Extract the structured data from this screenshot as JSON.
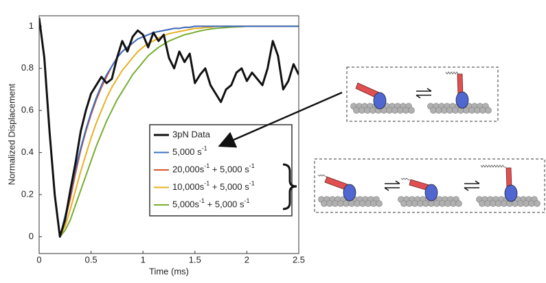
{
  "chart_data": {
    "type": "line",
    "x_label": "Time (ms)",
    "y_label": "Normalized Displacement",
    "xlim": [
      0,
      2.5
    ],
    "ylim": [
      -0.08,
      1.05
    ],
    "xticks": [
      0,
      0.5,
      1,
      1.5,
      2,
      2.5
    ],
    "yticks": [
      0,
      0.2,
      0.4,
      0.6,
      0.8,
      1
    ],
    "x": [
      0,
      0.05,
      0.1,
      0.15,
      0.2,
      0.25,
      0.3,
      0.35,
      0.4,
      0.45,
      0.5,
      0.55,
      0.6,
      0.65,
      0.7,
      0.75,
      0.8,
      0.85,
      0.9,
      0.95,
      1,
      1.05,
      1.1,
      1.15,
      1.2,
      1.25,
      1.3,
      1.35,
      1.4,
      1.45,
      1.5,
      1.55,
      1.6,
      1.65,
      1.7,
      1.75,
      1.8,
      1.85,
      1.9,
      1.95,
      2,
      2.05,
      2.1,
      2.15,
      2.2,
      2.25,
      2.3,
      2.35,
      2.4,
      2.45,
      2.5
    ],
    "series": [
      {
        "name": "3pN Data",
        "color": "#111111",
        "width": 3,
        "values": [
          1.04,
          0.85,
          0.5,
          0.2,
          0.0,
          0.08,
          0.22,
          0.35,
          0.5,
          0.6,
          0.68,
          0.72,
          0.76,
          0.73,
          0.75,
          0.85,
          0.93,
          0.88,
          0.95,
          0.98,
          0.96,
          0.9,
          0.97,
          0.93,
          0.96,
          0.85,
          0.8,
          0.88,
          0.83,
          0.87,
          0.73,
          0.77,
          0.8,
          0.72,
          0.68,
          0.64,
          0.7,
          0.72,
          0.78,
          0.8,
          0.74,
          0.78,
          0.75,
          0.72,
          0.8,
          0.93,
          0.86,
          0.7,
          0.74,
          0.82,
          0.77
        ]
      },
      {
        "name": "5,000 s-1",
        "color": "#3a6fc4",
        "width": 2,
        "values": [
          null,
          null,
          null,
          null,
          0,
          0.1,
          0.2,
          0.32,
          0.42,
          0.51,
          0.59,
          0.66,
          0.72,
          0.77,
          0.81,
          0.85,
          0.88,
          0.9,
          0.92,
          0.94,
          0.95,
          0.96,
          0.97,
          0.975,
          0.98,
          0.985,
          0.99,
          0.99,
          0.995,
          0.995,
          1,
          1,
          1,
          1,
          1,
          1,
          1,
          1,
          1,
          1,
          1,
          1,
          1,
          1,
          1,
          1,
          1,
          1,
          1,
          1,
          1
        ]
      },
      {
        "name": "20,000s-1 + 5,000 s-1",
        "color": "#d9542a",
        "width": 2,
        "values": [
          null,
          null,
          null,
          null,
          0,
          0.08,
          0.18,
          0.3,
          0.41,
          0.5,
          0.58,
          0.65,
          0.71,
          0.76,
          0.81,
          0.85,
          0.88,
          0.9,
          0.92,
          0.94,
          0.95,
          0.96,
          0.97,
          0.975,
          0.98,
          0.985,
          0.99,
          0.99,
          0.995,
          0.995,
          1,
          1,
          1,
          1,
          1,
          1,
          1,
          1,
          1,
          1,
          1,
          1,
          1,
          1,
          1,
          1,
          1,
          1,
          1,
          1,
          1
        ]
      },
      {
        "name": "10,000s-1 + 5,000 s-1",
        "color": "#e8b020",
        "width": 2,
        "values": [
          null,
          null,
          null,
          null,
          0,
          0.05,
          0.13,
          0.22,
          0.31,
          0.39,
          0.47,
          0.54,
          0.6,
          0.66,
          0.71,
          0.75,
          0.79,
          0.82,
          0.85,
          0.88,
          0.9,
          0.92,
          0.93,
          0.945,
          0.955,
          0.965,
          0.97,
          0.975,
          0.98,
          0.985,
          0.99,
          0.99,
          0.995,
          0.995,
          1,
          1,
          1,
          1,
          1,
          1,
          1,
          1,
          1,
          1,
          1,
          1,
          1,
          1,
          1,
          1,
          1
        ]
      },
      {
        "name": "5,000s-1 + 5,000 s-1",
        "color": "#77ac30",
        "width": 2,
        "values": [
          null,
          null,
          null,
          null,
          0,
          0.03,
          0.08,
          0.15,
          0.22,
          0.29,
          0.36,
          0.43,
          0.49,
          0.55,
          0.6,
          0.65,
          0.69,
          0.73,
          0.77,
          0.8,
          0.83,
          0.86,
          0.88,
          0.9,
          0.915,
          0.93,
          0.94,
          0.95,
          0.96,
          0.965,
          0.972,
          0.978,
          0.983,
          0.987,
          0.99,
          0.992,
          0.994,
          0.996,
          0.997,
          0.998,
          1,
          1,
          1,
          1,
          1,
          1,
          1,
          1,
          1,
          1,
          1
        ]
      }
    ]
  }
}
